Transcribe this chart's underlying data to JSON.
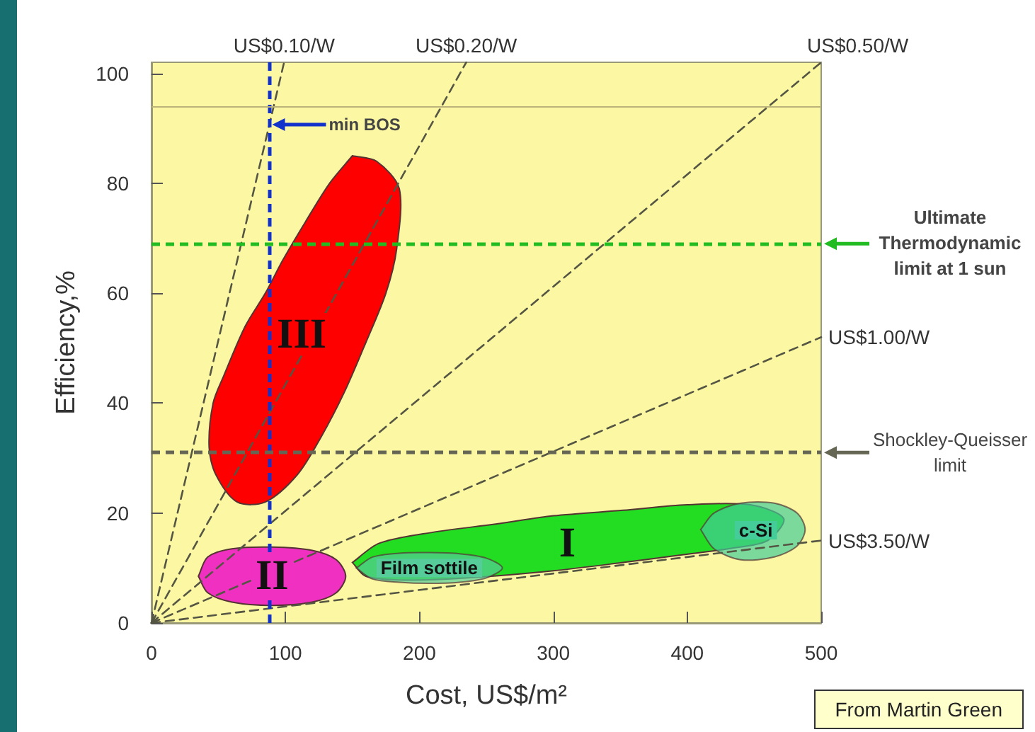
{
  "chart_data": {
    "type": "line",
    "xlabel": "Cost, US$/m²",
    "ylabel": "Efficiency,%",
    "xlim": [
      0,
      500
    ],
    "xticks": [
      0,
      100,
      200,
      300,
      400,
      500
    ],
    "ylim": [
      0,
      102
    ],
    "yticks": [
      0,
      20,
      40,
      60,
      80,
      100
    ],
    "grid": false,
    "legend": false,
    "marker": "none",
    "line_style": "dashed",
    "series": [
      {
        "name": "US$0.10/W",
        "color": "#555544",
        "x": [
          0,
          99
        ],
        "values": [
          0,
          102
        ]
      },
      {
        "name": "US$0.20/W",
        "color": "#555544",
        "x": [
          0,
          235
        ],
        "values": [
          0,
          102
        ]
      },
      {
        "name": "US$0.50/W",
        "color": "#555544",
        "x": [
          0,
          500
        ],
        "values": [
          0,
          102
        ]
      },
      {
        "name": "US$1.00/W",
        "color": "#555544",
        "x": [
          0,
          500
        ],
        "values": [
          0,
          52
        ]
      },
      {
        "name": "US$3.50/W",
        "color": "#555544",
        "x": [
          0,
          500
        ],
        "values": [
          0,
          15
        ]
      },
      {
        "type": "area",
        "name": "III",
        "color": "#ff0000",
        "x": [
          150,
          168,
          185,
          183,
          175,
          160,
          144,
          127,
          109,
          85,
          64,
          48,
          43,
          46,
          54,
          70,
          85,
          98,
          115,
          133,
          150
        ],
        "values": [
          85,
          84,
          79,
          68,
          60,
          51,
          42,
          34,
          27,
          22,
          22,
          27,
          32,
          40,
          45,
          54,
          60,
          66,
          73,
          80,
          85
        ]
      },
      {
        "type": "area",
        "name": "II",
        "color": "#f030c0",
        "x": [
          35,
          42,
          60,
          90,
          120,
          138,
          145,
          138,
          120,
          90,
          60,
          42,
          35
        ],
        "values": [
          8.5,
          12,
          13.5,
          13.8,
          13.2,
          11.5,
          8.5,
          5.5,
          3.8,
          3.2,
          3.8,
          5.5,
          8.5
        ]
      },
      {
        "type": "area",
        "name": "I",
        "color": "#22dd22",
        "x": [
          150,
          170,
          210,
          257,
          300,
          352,
          400,
          447,
          472,
          460,
          433,
          390,
          352,
          300,
          236,
          190,
          160,
          150
        ],
        "values": [
          11,
          14.5,
          16.5,
          18,
          19.5,
          20.5,
          21.5,
          21.5,
          19,
          15,
          13.6,
          12.2,
          11,
          9.5,
          8.2,
          7.8,
          8.5,
          11
        ]
      },
      {
        "type": "area",
        "name": "Film sottile",
        "color": "#55cc99",
        "x": [
          153,
          165,
          185,
          207,
          230,
          250,
          262,
          250,
          230,
          207,
          185,
          165,
          153
        ],
        "values": [
          10,
          12,
          12.7,
          12.8,
          12.6,
          11.8,
          10,
          8.2,
          7.4,
          7.2,
          7.4,
          8,
          10
        ]
      },
      {
        "type": "area",
        "name": "c-Si",
        "color": "#44cc99",
        "x": [
          410,
          420,
          440,
          465,
          482,
          488,
          482,
          465,
          440,
          420,
          410
        ],
        "values": [
          17,
          20,
          21.8,
          21.8,
          20,
          17,
          14,
          12,
          11.5,
          13.5,
          17
        ]
      }
    ],
    "ref_lines": [
      {
        "axis": "x",
        "value": 88,
        "label": "min BOS",
        "color": "#1133cc",
        "line_style": "dashed"
      },
      {
        "axis": "y",
        "value": 69,
        "label": "Ultimate Thermodynamic limit at 1 sun",
        "color": "#22bb22",
        "line_style": "dashed"
      },
      {
        "axis": "y",
        "value": 31,
        "label": "Shockley-Queisser limit",
        "color": "#666655",
        "line_style": "dashed"
      },
      {
        "axis": "y",
        "value": 94,
        "label": null,
        "color": "#bbb37a",
        "line_style": "solid"
      }
    ],
    "annotations": [
      "From Martin Green"
    ]
  }
}
